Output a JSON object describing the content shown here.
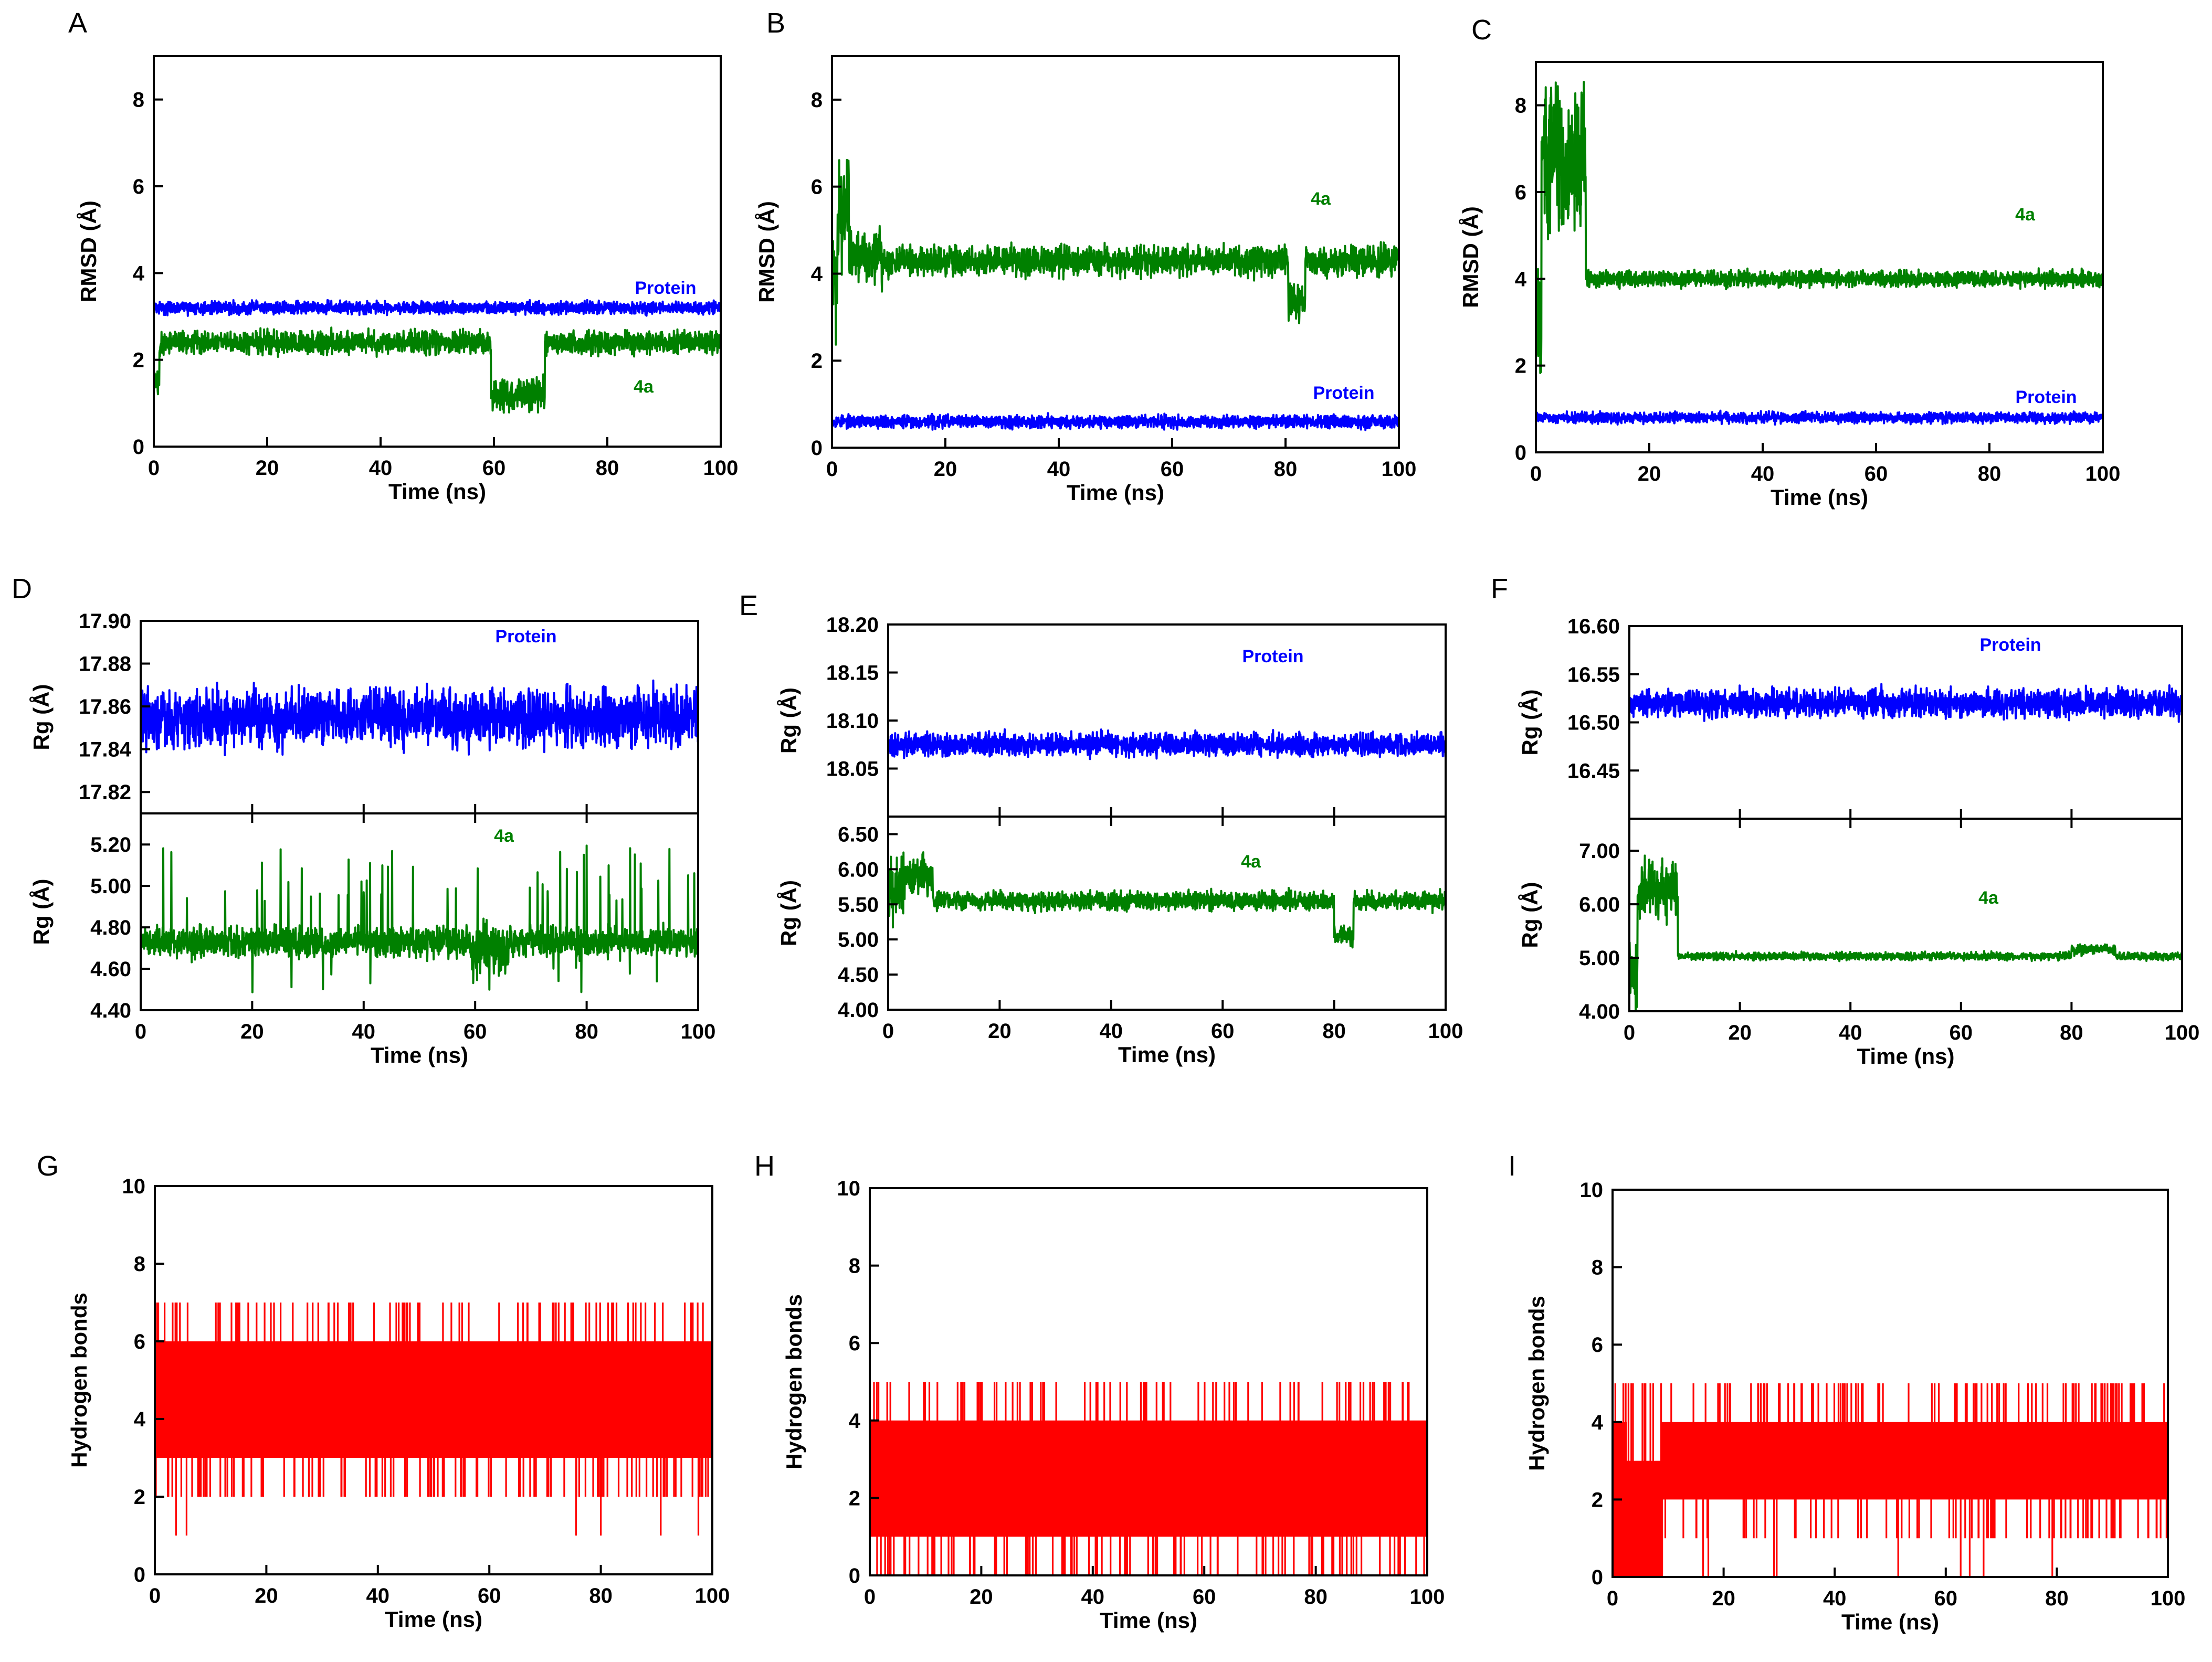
{
  "colors": {
    "protein": "#0000ff",
    "ligand": "#008000",
    "hbond": "#ff0000",
    "axis": "#000000"
  },
  "chart_data": [
    {
      "panel": "A",
      "type": "line",
      "xlabel": "Time (ns)",
      "ylabel": "RMSD (Å)",
      "xlim": [
        0,
        100
      ],
      "ylim": [
        0,
        9
      ],
      "xticks": [
        "0",
        "20",
        "40",
        "60",
        "80",
        "100"
      ],
      "yticks": [
        "0",
        "2",
        "4",
        "6",
        "8"
      ],
      "series": [
        {
          "name": "Protein",
          "color": "#0000ff",
          "mean": 3.2,
          "noise": 0.12,
          "segments": []
        },
        {
          "name": "4a",
          "color": "#008000",
          "mean": 2.4,
          "noise": 0.22,
          "segments": [
            {
              "from": 0,
              "to": 1,
              "mean": 1.5
            },
            {
              "from": 59.5,
              "to": 69,
              "mean": 1.2,
              "noise": 0.35
            }
          ]
        }
      ]
    },
    {
      "panel": "B",
      "type": "line",
      "xlabel": "Time (ns)",
      "ylabel": "RMSD (Å)",
      "xlim": [
        0,
        100
      ],
      "ylim": [
        0,
        9
      ],
      "xticks": [
        "0",
        "20",
        "40",
        "60",
        "80",
        "100"
      ],
      "yticks": [
        "0",
        "2",
        "4",
        "6",
        "8"
      ],
      "series": [
        {
          "name": "4a",
          "color": "#008000",
          "mean": 4.3,
          "noise": 0.28,
          "segments": [
            {
              "from": 0,
              "to": 1,
              "mean": 4.0,
              "noise": 1.2
            },
            {
              "from": 1,
              "to": 3,
              "mean": 5.6,
              "noise": 1.2
            },
            {
              "from": 3,
              "to": 9,
              "mean": 4.4,
              "noise": 0.55
            },
            {
              "from": 80.5,
              "to": 83.5,
              "mean": 3.4,
              "noise": 0.35
            }
          ]
        },
        {
          "name": "Protein",
          "color": "#0000ff",
          "mean": 0.6,
          "noise": 0.12,
          "segments": []
        }
      ]
    },
    {
      "panel": "C",
      "type": "line",
      "xlabel": "Time (ns)",
      "ylabel": "RMSD (Å)",
      "xlim": [
        0,
        100
      ],
      "ylim": [
        0,
        9
      ],
      "xticks": [
        "0",
        "20",
        "40",
        "60",
        "80",
        "100"
      ],
      "yticks": [
        "0",
        "2",
        "4",
        "6",
        "8"
      ],
      "series": [
        {
          "name": "4a",
          "color": "#008000",
          "mean": 4.0,
          "noise": 0.15,
          "segments": [
            {
              "from": 0,
              "to": 1,
              "mean": 3.0,
              "noise": 1.0
            },
            {
              "from": 1,
              "to": 8.8,
              "mean": 6.8,
              "noise": 1.4
            }
          ]
        },
        {
          "name": "Protein",
          "color": "#0000ff",
          "mean": 0.8,
          "noise": 0.1,
          "segments": []
        }
      ]
    },
    {
      "panel": "D",
      "type": "line",
      "xlabel": "Time (ns)",
      "xlim": [
        0,
        100
      ],
      "xticks": [
        "0",
        "20",
        "40",
        "60",
        "80",
        "100"
      ],
      "top": {
        "ylabel": "Rg (Å)",
        "ylim": [
          17.81,
          17.9
        ],
        "yticks": [
          "17.82",
          "17.84",
          "17.86",
          "17.88",
          "17.90"
        ],
        "series": {
          "name": "Protein",
          "color": "#0000ff",
          "mean": 17.855,
          "noise": 0.011
        }
      },
      "bottom": {
        "ylabel": "Rg (Å)",
        "ylim": [
          4.4,
          5.35
        ],
        "yticks": [
          "4.40",
          "4.60",
          "4.80",
          "5.00",
          "5.20"
        ],
        "series": {
          "name": "4a",
          "color": "#008000",
          "mean": 4.73,
          "noise": 0.06,
          "spikes": 0.35,
          "segments": [
            {
              "from": 59,
              "to": 66,
              "mean": 4.7,
              "noise": 0.12
            }
          ]
        }
      }
    },
    {
      "panel": "E",
      "type": "line",
      "xlabel": "Time (ns)",
      "xlim": [
        0,
        100
      ],
      "xticks": [
        "0",
        "20",
        "40",
        "60",
        "80",
        "100"
      ],
      "top": {
        "ylabel": "Rg (Å)",
        "ylim": [
          18.0,
          18.2
        ],
        "yticks": [
          "18.05",
          "18.10",
          "18.15",
          "18.20"
        ],
        "series": {
          "name": "Protein",
          "color": "#0000ff",
          "mean": 18.075,
          "noise": 0.01
        }
      },
      "bottom": {
        "ylabel": "Rg (Å)",
        "ylim": [
          4.0,
          6.75
        ],
        "yticks": [
          "4.00",
          "4.50",
          "5.00",
          "5.50",
          "6.00",
          "6.50"
        ],
        "series": {
          "name": "4a",
          "color": "#008000",
          "mean": 5.55,
          "noise": 0.11,
          "segments": [
            {
              "from": 0,
              "to": 3,
              "mean": 5.7,
              "noise": 0.45
            },
            {
              "from": 3,
              "to": 8,
              "mean": 5.9,
              "noise": 0.22
            },
            {
              "from": 80,
              "to": 83.5,
              "mean": 5.05,
              "noise": 0.12
            }
          ]
        }
      }
    },
    {
      "panel": "F",
      "type": "line",
      "xlabel": "Time (ns)",
      "xlim": [
        0,
        100
      ],
      "xticks": [
        "0",
        "20",
        "40",
        "60",
        "80",
        "100"
      ],
      "top": {
        "ylabel": "Rg (Å)",
        "ylim": [
          16.4,
          16.6
        ],
        "yticks": [
          "16.45",
          "16.50",
          "16.55",
          "16.60"
        ],
        "series": {
          "name": "Protein",
          "color": "#0000ff",
          "mean": 16.52,
          "noise": 0.012
        }
      },
      "bottom": {
        "ylabel": "Rg (Å)",
        "ylim": [
          4.0,
          7.6
        ],
        "yticks": [
          "4.00",
          "5.00",
          "6.00",
          "7.00"
        ],
        "series": {
          "name": "4a",
          "color": "#008000",
          "mean": 5.03,
          "noise": 0.06,
          "segments": [
            {
              "from": 0,
              "to": 1.5,
              "mean": 4.8,
              "noise": 0.6
            },
            {
              "from": 1.5,
              "to": 8.8,
              "mean": 6.3,
              "noise": 0.45
            },
            {
              "from": 80,
              "to": 88,
              "mean": 5.15,
              "noise": 0.08
            }
          ]
        }
      }
    },
    {
      "panel": "G",
      "type": "line",
      "xlabel": "Time (ns)",
      "ylabel": "Hydrogen bonds",
      "xlim": [
        0,
        100
      ],
      "ylim": [
        0,
        10
      ],
      "xticks": [
        "0",
        "20",
        "40",
        "60",
        "80",
        "100"
      ],
      "yticks": [
        "0",
        "2",
        "4",
        "6",
        "8",
        "10"
      ],
      "series": [
        {
          "name": "Hydrogen bonds",
          "color": "#ff0000",
          "range": [
            3,
            6
          ],
          "spikes_high": 7,
          "spikes_low": 2,
          "minimum": 1
        }
      ]
    },
    {
      "panel": "H",
      "type": "line",
      "xlabel": "Time (ns)",
      "ylabel": "Hydrogen bonds",
      "xlim": [
        0,
        100
      ],
      "ylim": [
        0,
        10
      ],
      "xticks": [
        "0",
        "20",
        "40",
        "60",
        "80",
        "100"
      ],
      "yticks": [
        "0",
        "2",
        "4",
        "6",
        "8",
        "10"
      ],
      "series": [
        {
          "name": "Hydrogen bonds",
          "color": "#ff0000",
          "range": [
            1,
            4
          ],
          "spikes_high": 5,
          "spikes_low": 0,
          "minimum": 0
        }
      ]
    },
    {
      "panel": "I",
      "type": "line",
      "xlabel": "Time (ns)",
      "ylabel": "Hydrogen bonds",
      "xlim": [
        0,
        100
      ],
      "ylim": [
        0,
        10
      ],
      "xticks": [
        "0",
        "20",
        "40",
        "60",
        "80",
        "100"
      ],
      "yticks": [
        "0",
        "2",
        "4",
        "6",
        "8",
        "10"
      ],
      "series": [
        {
          "name": "Hydrogen bonds",
          "color": "#ff0000",
          "range": [
            2,
            4
          ],
          "early_range": [
            0,
            3
          ],
          "early_until": 9,
          "spikes_high": 5,
          "spikes_low": 1,
          "minimum": 0
        }
      ]
    }
  ]
}
